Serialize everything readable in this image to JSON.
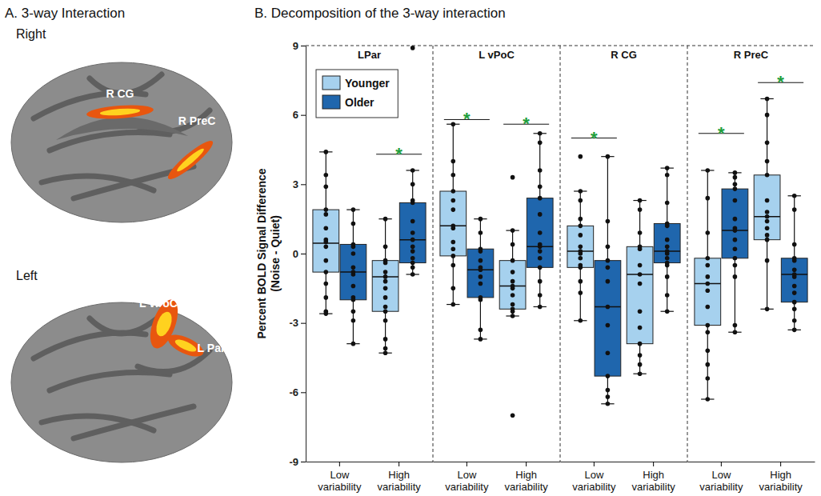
{
  "chart_data": {
    "type": "box",
    "title": "B. Decomposition of the 3-way interaction",
    "y_label": [
      "Percent BOLD Signal Difference",
      "(Noise - Quiet)"
    ],
    "ylim": [
      -9,
      9
    ],
    "yticks": [
      -9,
      -6,
      -3,
      0,
      3,
      6,
      9
    ],
    "grid": false,
    "legend": "upper left",
    "categories": [
      "Low variability",
      "High variability"
    ],
    "series": [
      {
        "name": "Younger",
        "color": "#a6d1ee"
      },
      {
        "name": "Older",
        "color": "#1f66ad"
      }
    ],
    "significance_label": "*",
    "panels": [
      {
        "title": "LPar",
        "significance": [
          null,
          4.3
        ],
        "data": [
          [
            {
              "min": -2.6,
              "q1": -0.8,
              "median": 0.45,
              "q3": 1.9,
              "max": 4.4,
              "points": [
                4.4,
                3.4,
                2.9,
                1.9,
                1.7,
                1.1,
                0.6,
                0.5,
                0.3,
                -0.3,
                -0.8,
                -1.3,
                -1.9,
                -2.5,
                -2.6
              ]
            },
            {
              "min": -3.9,
              "q1": -2.0,
              "median": -0.8,
              "q3": 0.4,
              "max": 1.9,
              "points": [
                1.9,
                1.3,
                0.4,
                0.3,
                0.0,
                -0.6,
                -0.8,
                -0.9,
                -1.4,
                -1.9,
                -2.0,
                -2.5,
                -2.9,
                -3.9
              ]
            }
          ],
          [
            {
              "min": -4.3,
              "q1": -2.5,
              "median": -1.0,
              "q3": -0.3,
              "max": 1.5,
              "points": [
                1.5,
                0.3,
                -0.3,
                -0.4,
                -0.8,
                -1.0,
                -1.2,
                -1.5,
                -1.9,
                -2.3,
                -2.5,
                -2.9,
                -3.7,
                -4.1,
                -4.3
              ]
            },
            {
              "min": -0.9,
              "q1": -0.4,
              "median": 0.6,
              "q3": 2.2,
              "max": 3.6,
              "points": [
                8.9,
                3.6,
                3.0,
                2.3,
                2.2,
                1.4,
                0.9,
                0.6,
                0.3,
                0.1,
                -0.2,
                -0.4,
                -0.6,
                -0.9
              ]
            }
          ]
        ]
      },
      {
        "title": "L vPoC",
        "significance": [
          5.8,
          5.6
        ],
        "data": [
          [
            {
              "min": -2.2,
              "q1": -0.1,
              "median": 1.2,
              "q3": 2.7,
              "max": 5.6,
              "points": [
                5.6,
                4.0,
                3.4,
                2.7,
                2.3,
                1.9,
                1.2,
                1.1,
                0.5,
                0.2,
                -0.1,
                -0.5,
                -1.5,
                -2.2
              ]
            },
            {
              "min": -3.7,
              "q1": -1.9,
              "median": -0.7,
              "q3": 0.2,
              "max": 1.5,
              "points": [
                1.5,
                0.9,
                0.2,
                0.1,
                -0.3,
                -0.6,
                -0.7,
                -1.0,
                -1.3,
                -1.9,
                -2.0,
                -3.3,
                -3.7
              ]
            }
          ],
          [
            {
              "min": -2.7,
              "q1": -2.4,
              "median": -1.4,
              "q3": -0.3,
              "max": 1.0,
              "points": [
                3.3,
                1.0,
                0.4,
                -0.3,
                -0.8,
                -1.2,
                -1.4,
                -1.5,
                -1.8,
                -2.2,
                -2.4,
                -2.5,
                -2.7,
                -7.0
              ]
            },
            {
              "min": -2.3,
              "q1": -0.6,
              "median": 0.3,
              "q3": 2.4,
              "max": 5.2,
              "points": [
                5.2,
                4.8,
                3.6,
                2.9,
                2.4,
                1.7,
                0.9,
                0.4,
                0.3,
                0.1,
                -0.2,
                -0.6,
                -1.2,
                -1.8,
                -2.3
              ]
            }
          ]
        ]
      },
      {
        "title": "R CG",
        "significance": [
          5.0,
          null
        ],
        "data": [
          [
            {
              "min": -2.9,
              "q1": -0.6,
              "median": 0.1,
              "q3": 1.2,
              "max": 2.7,
              "points": [
                4.2,
                2.7,
                2.3,
                1.5,
                1.2,
                0.8,
                0.3,
                0.1,
                0.0,
                -0.2,
                -0.5,
                -0.6,
                -1.2,
                -1.7,
                -2.9
              ]
            },
            {
              "min": -6.5,
              "q1": -5.3,
              "median": -2.3,
              "q3": -0.3,
              "max": 4.2,
              "points": [
                4.2,
                1.4,
                0.3,
                -0.3,
                -0.6,
                -1.2,
                -2.3,
                -3.1,
                -4.3,
                -5.3,
                -5.9,
                -6.2,
                -6.5
              ]
            }
          ],
          [
            {
              "min": -5.2,
              "q1": -3.9,
              "median": -0.9,
              "q3": 0.3,
              "max": 2.3,
              "points": [
                2.3,
                1.9,
                0.9,
                0.3,
                0.2,
                -0.5,
                -0.9,
                -1.3,
                -2.5,
                -3.2,
                -3.9,
                -4.4,
                -4.8,
                -5.2
              ]
            },
            {
              "min": -2.5,
              "q1": -0.4,
              "median": 0.1,
              "q3": 1.3,
              "max": 3.7,
              "points": [
                3.7,
                3.4,
                2.2,
                1.3,
                1.2,
                0.6,
                0.3,
                0.1,
                0.0,
                -0.2,
                -0.4,
                -0.5,
                -1.0,
                -1.8,
                -2.5
              ]
            }
          ]
        ]
      },
      {
        "title": "R PreC",
        "significance": [
          5.2,
          7.4
        ],
        "data": [
          [
            {
              "min": -6.3,
              "q1": -3.1,
              "median": -1.3,
              "q3": -0.2,
              "max": 3.6,
              "points": [
                3.6,
                2.4,
                0.9,
                -0.2,
                -0.5,
                -1.0,
                -1.3,
                -1.6,
                -2.3,
                -3.1,
                -3.4,
                -4.2,
                -4.8,
                -5.4,
                -6.3
              ]
            },
            {
              "min": -3.4,
              "q1": -0.2,
              "median": 1.0,
              "q3": 2.8,
              "max": 3.5,
              "points": [
                3.5,
                3.3,
                3.0,
                2.8,
                2.3,
                1.5,
                1.1,
                1.0,
                0.6,
                0.2,
                -0.2,
                -0.5,
                -1.0,
                -3.1,
                -3.4
              ]
            }
          ],
          [
            {
              "min": -2.4,
              "q1": 0.6,
              "median": 1.6,
              "q3": 3.4,
              "max": 6.7,
              "points": [
                6.7,
                6.0,
                4.8,
                4.0,
                3.4,
                2.3,
                1.8,
                1.6,
                1.4,
                1.1,
                0.8,
                0.6,
                -0.3,
                -2.4
              ]
            },
            {
              "min": -3.3,
              "q1": -2.1,
              "median": -0.9,
              "q3": -0.2,
              "max": 2.5,
              "points": [
                2.5,
                1.9,
                0.4,
                -0.2,
                -0.3,
                -0.7,
                -0.9,
                -1.0,
                -1.4,
                -1.7,
                -2.1,
                -2.4,
                -2.9,
                -3.3
              ]
            }
          ]
        ]
      }
    ]
  },
  "brain_panel": {
    "title": "A. 3-way Interaction",
    "views": [
      {
        "label": "Right",
        "regions": [
          "R CG",
          "R PreC"
        ]
      },
      {
        "label": "Left",
        "regions": [
          "L vPoC",
          "L Par"
        ]
      }
    ]
  }
}
